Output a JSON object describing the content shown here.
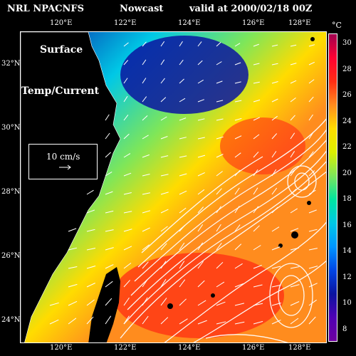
{
  "header": {
    "source": "NRL NPACNFS",
    "product": "Nowcast",
    "valid": "valid at 2000/02/18 00Z"
  },
  "map_labels": {
    "line1": "Surface",
    "line2": "Temp/Current"
  },
  "legend": {
    "vector_label": "10 cm/s"
  },
  "lon_ticks": [
    "120°E",
    "122°E",
    "124°E",
    "126°E",
    "128°E"
  ],
  "lat_ticks": [
    "32°N",
    "30°N",
    "28°N",
    "26°N",
    "24°N"
  ],
  "colorbar": {
    "unit": "°C",
    "ticks": [
      "30",
      "28",
      "26",
      "24",
      "22",
      "20",
      "18",
      "16",
      "14",
      "12",
      "10",
      "8"
    ]
  },
  "colors": {
    "land": "#000000",
    "cold": "#0a14a0",
    "cool": "#00c8e6",
    "mid": "#7de65a",
    "warm": "#ffdc00",
    "hot": "#ff8c1e",
    "hottest": "#ff2d14"
  }
}
